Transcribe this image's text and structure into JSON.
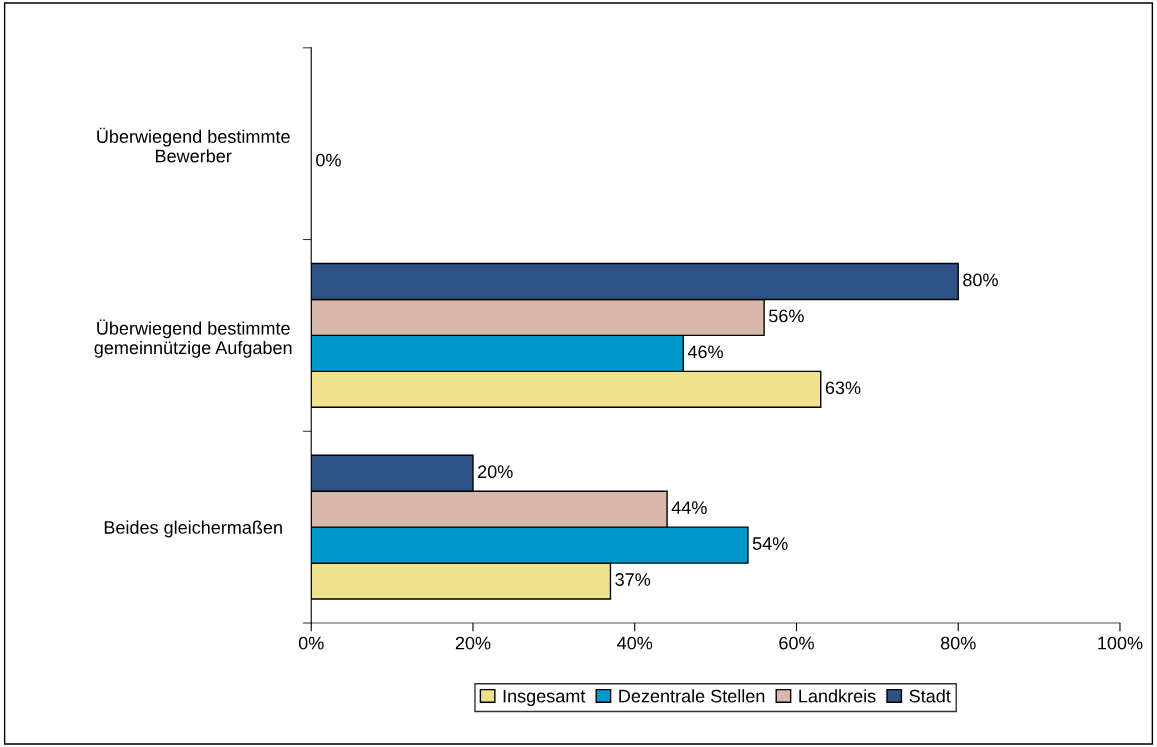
{
  "chart_data": {
    "type": "bar",
    "orientation": "horizontal",
    "categories": [
      "Überwiegend bestimmte\nBewerber",
      "Überwiegend bestimmte\ngemeinnützige Aufgaben",
      "Beides gleichermaßen"
    ],
    "series": [
      {
        "name": "Insgesamt",
        "color": "#f0e28c",
        "values": [
          0,
          63,
          37
        ],
        "value_labels": [
          null,
          "63%",
          "37%"
        ]
      },
      {
        "name": "Dezentrale Stellen",
        "color": "#0099cc",
        "values": [
          0,
          46,
          54
        ],
        "value_labels": [
          "0%",
          "46%",
          "54%"
        ]
      },
      {
        "name": "Landkreis",
        "color": "#d8b8aa",
        "values": [
          0,
          56,
          44
        ],
        "value_labels": [
          null,
          "56%",
          "44%"
        ]
      },
      {
        "name": "Stadt",
        "color": "#2e5283",
        "values": [
          0,
          80,
          20
        ],
        "value_labels": [
          null,
          "80%",
          "20%"
        ]
      }
    ],
    "xlim": [
      0,
      100
    ],
    "xticks": [
      {
        "value": 0,
        "label": "0%"
      },
      {
        "value": 20,
        "label": "20%"
      },
      {
        "value": 40,
        "label": "40%"
      },
      {
        "value": 60,
        "label": "60%"
      },
      {
        "value": 80,
        "label": "80%"
      },
      {
        "value": 100,
        "label": "100%"
      }
    ],
    "grid": false,
    "legend": "bottom"
  }
}
